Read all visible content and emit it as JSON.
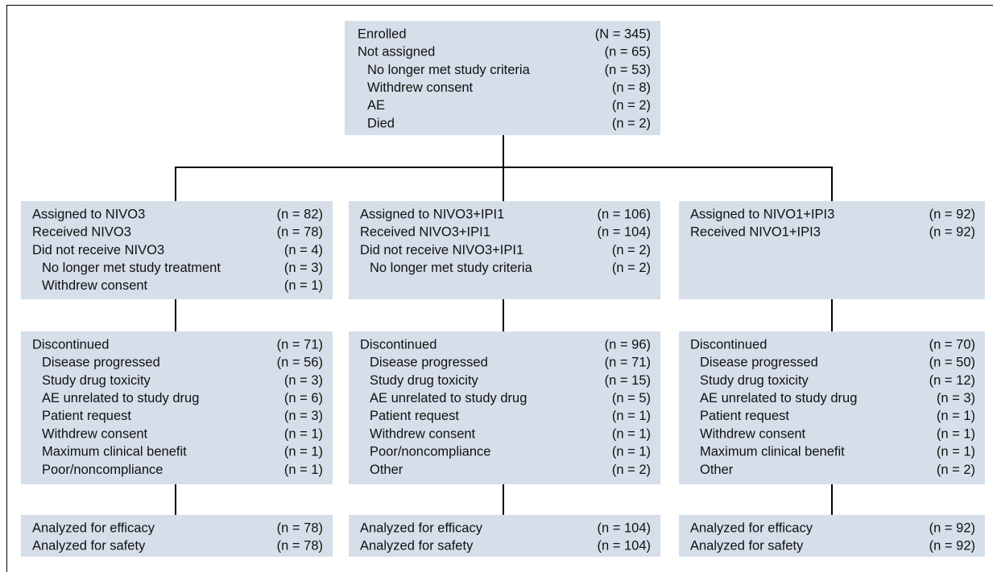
{
  "top": [
    {
      "label": "Enrolled",
      "count": "(N = 345)"
    },
    {
      "label": "Not assigned",
      "count": "(n = 65)",
      "items": [
        {
          "label": "No longer met study criteria",
          "count": "(n = 53)"
        },
        {
          "label": "Withdrew consent",
          "count": "(n = 8)"
        },
        {
          "label": "AE",
          "count": "(n = 2)"
        },
        {
          "label": "Died",
          "count": "(n = 2)"
        }
      ]
    }
  ],
  "arms": [
    {
      "allocation": [
        {
          "label": "Assigned to NIVO3",
          "count": "(n = 82)"
        },
        {
          "label": "Received NIVO3",
          "count": "(n = 78)"
        },
        {
          "label": "Did not receive NIVO3",
          "count": "(n = 4)",
          "items": [
            {
              "label": "No longer met study treatment",
              "count": "(n = 3)"
            },
            {
              "label": "Withdrew consent",
              "count": "(n = 1)"
            }
          ]
        }
      ],
      "followup": [
        {
          "label": "Discontinued",
          "count": "(n = 71)",
          "items": [
            {
              "label": "Disease progressed",
              "count": "(n = 56)"
            },
            {
              "label": "Study drug toxicity",
              "count": "(n = 3)"
            },
            {
              "label": "AE unrelated to study drug",
              "count": "(n = 6)"
            },
            {
              "label": "Patient request",
              "count": "(n = 3)"
            },
            {
              "label": "Withdrew consent",
              "count": "(n = 1)"
            },
            {
              "label": "Maximum clinical benefit",
              "count": "(n = 1)"
            },
            {
              "label": "Poor/noncompliance",
              "count": "(n = 1)"
            }
          ]
        }
      ],
      "analysis": [
        {
          "label": "Analyzed for efficacy",
          "count": "(n = 78)"
        },
        {
          "label": "Analyzed for safety",
          "count": "(n = 78)"
        }
      ]
    },
    {
      "allocation": [
        {
          "label": "Assigned to NIVO3+IPI1",
          "count": "(n = 106)"
        },
        {
          "label": "Received NIVO3+IPI1",
          "count": "(n = 104)"
        },
        {
          "label": "Did not receive NIVO3+IPI1",
          "count": "(n = 2)",
          "items": [
            {
              "label": "No longer met study criteria",
              "count": "(n = 2)"
            }
          ]
        }
      ],
      "followup": [
        {
          "label": "Discontinued",
          "count": "(n = 96)",
          "items": [
            {
              "label": "Disease progressed",
              "count": "(n = 71)"
            },
            {
              "label": "Study drug toxicity",
              "count": "(n = 15)"
            },
            {
              "label": "AE unrelated to study drug",
              "count": "(n = 5)"
            },
            {
              "label": "Patient request",
              "count": "(n = 1)"
            },
            {
              "label": "Withdrew consent",
              "count": "(n = 1)"
            },
            {
              "label": "Poor/noncompliance",
              "count": "(n = 1)"
            },
            {
              "label": "Other",
              "count": "(n = 2)"
            }
          ]
        }
      ],
      "analysis": [
        {
          "label": "Analyzed for efficacy",
          "count": "(n = 104)"
        },
        {
          "label": "Analyzed for safety",
          "count": "(n = 104)"
        }
      ]
    },
    {
      "allocation": [
        {
          "label": "Assigned to NIVO1+IPI3",
          "count": "(n = 92)"
        },
        {
          "label": "Received NIVO1+IPI3",
          "count": "(n = 92)"
        }
      ],
      "followup": [
        {
          "label": "Discontinued",
          "count": "(n = 70)",
          "items": [
            {
              "label": "Disease progressed",
              "count": "(n = 50)"
            },
            {
              "label": "Study drug toxicity",
              "count": "(n = 12)"
            },
            {
              "label": "AE unrelated to study drug",
              "count": "(n = 3)"
            },
            {
              "label": "Patient request",
              "count": "(n = 1)"
            },
            {
              "label": "Withdrew consent",
              "count": "(n = 1)"
            },
            {
              "label": "Maximum clinical benefit",
              "count": "(n = 1)"
            },
            {
              "label": "Other",
              "count": "(n = 2)"
            }
          ]
        }
      ],
      "analysis": [
        {
          "label": "Analyzed for efficacy",
          "count": "(n = 92)"
        },
        {
          "label": "Analyzed for safety",
          "count": "(n = 92)"
        }
      ]
    }
  ]
}
